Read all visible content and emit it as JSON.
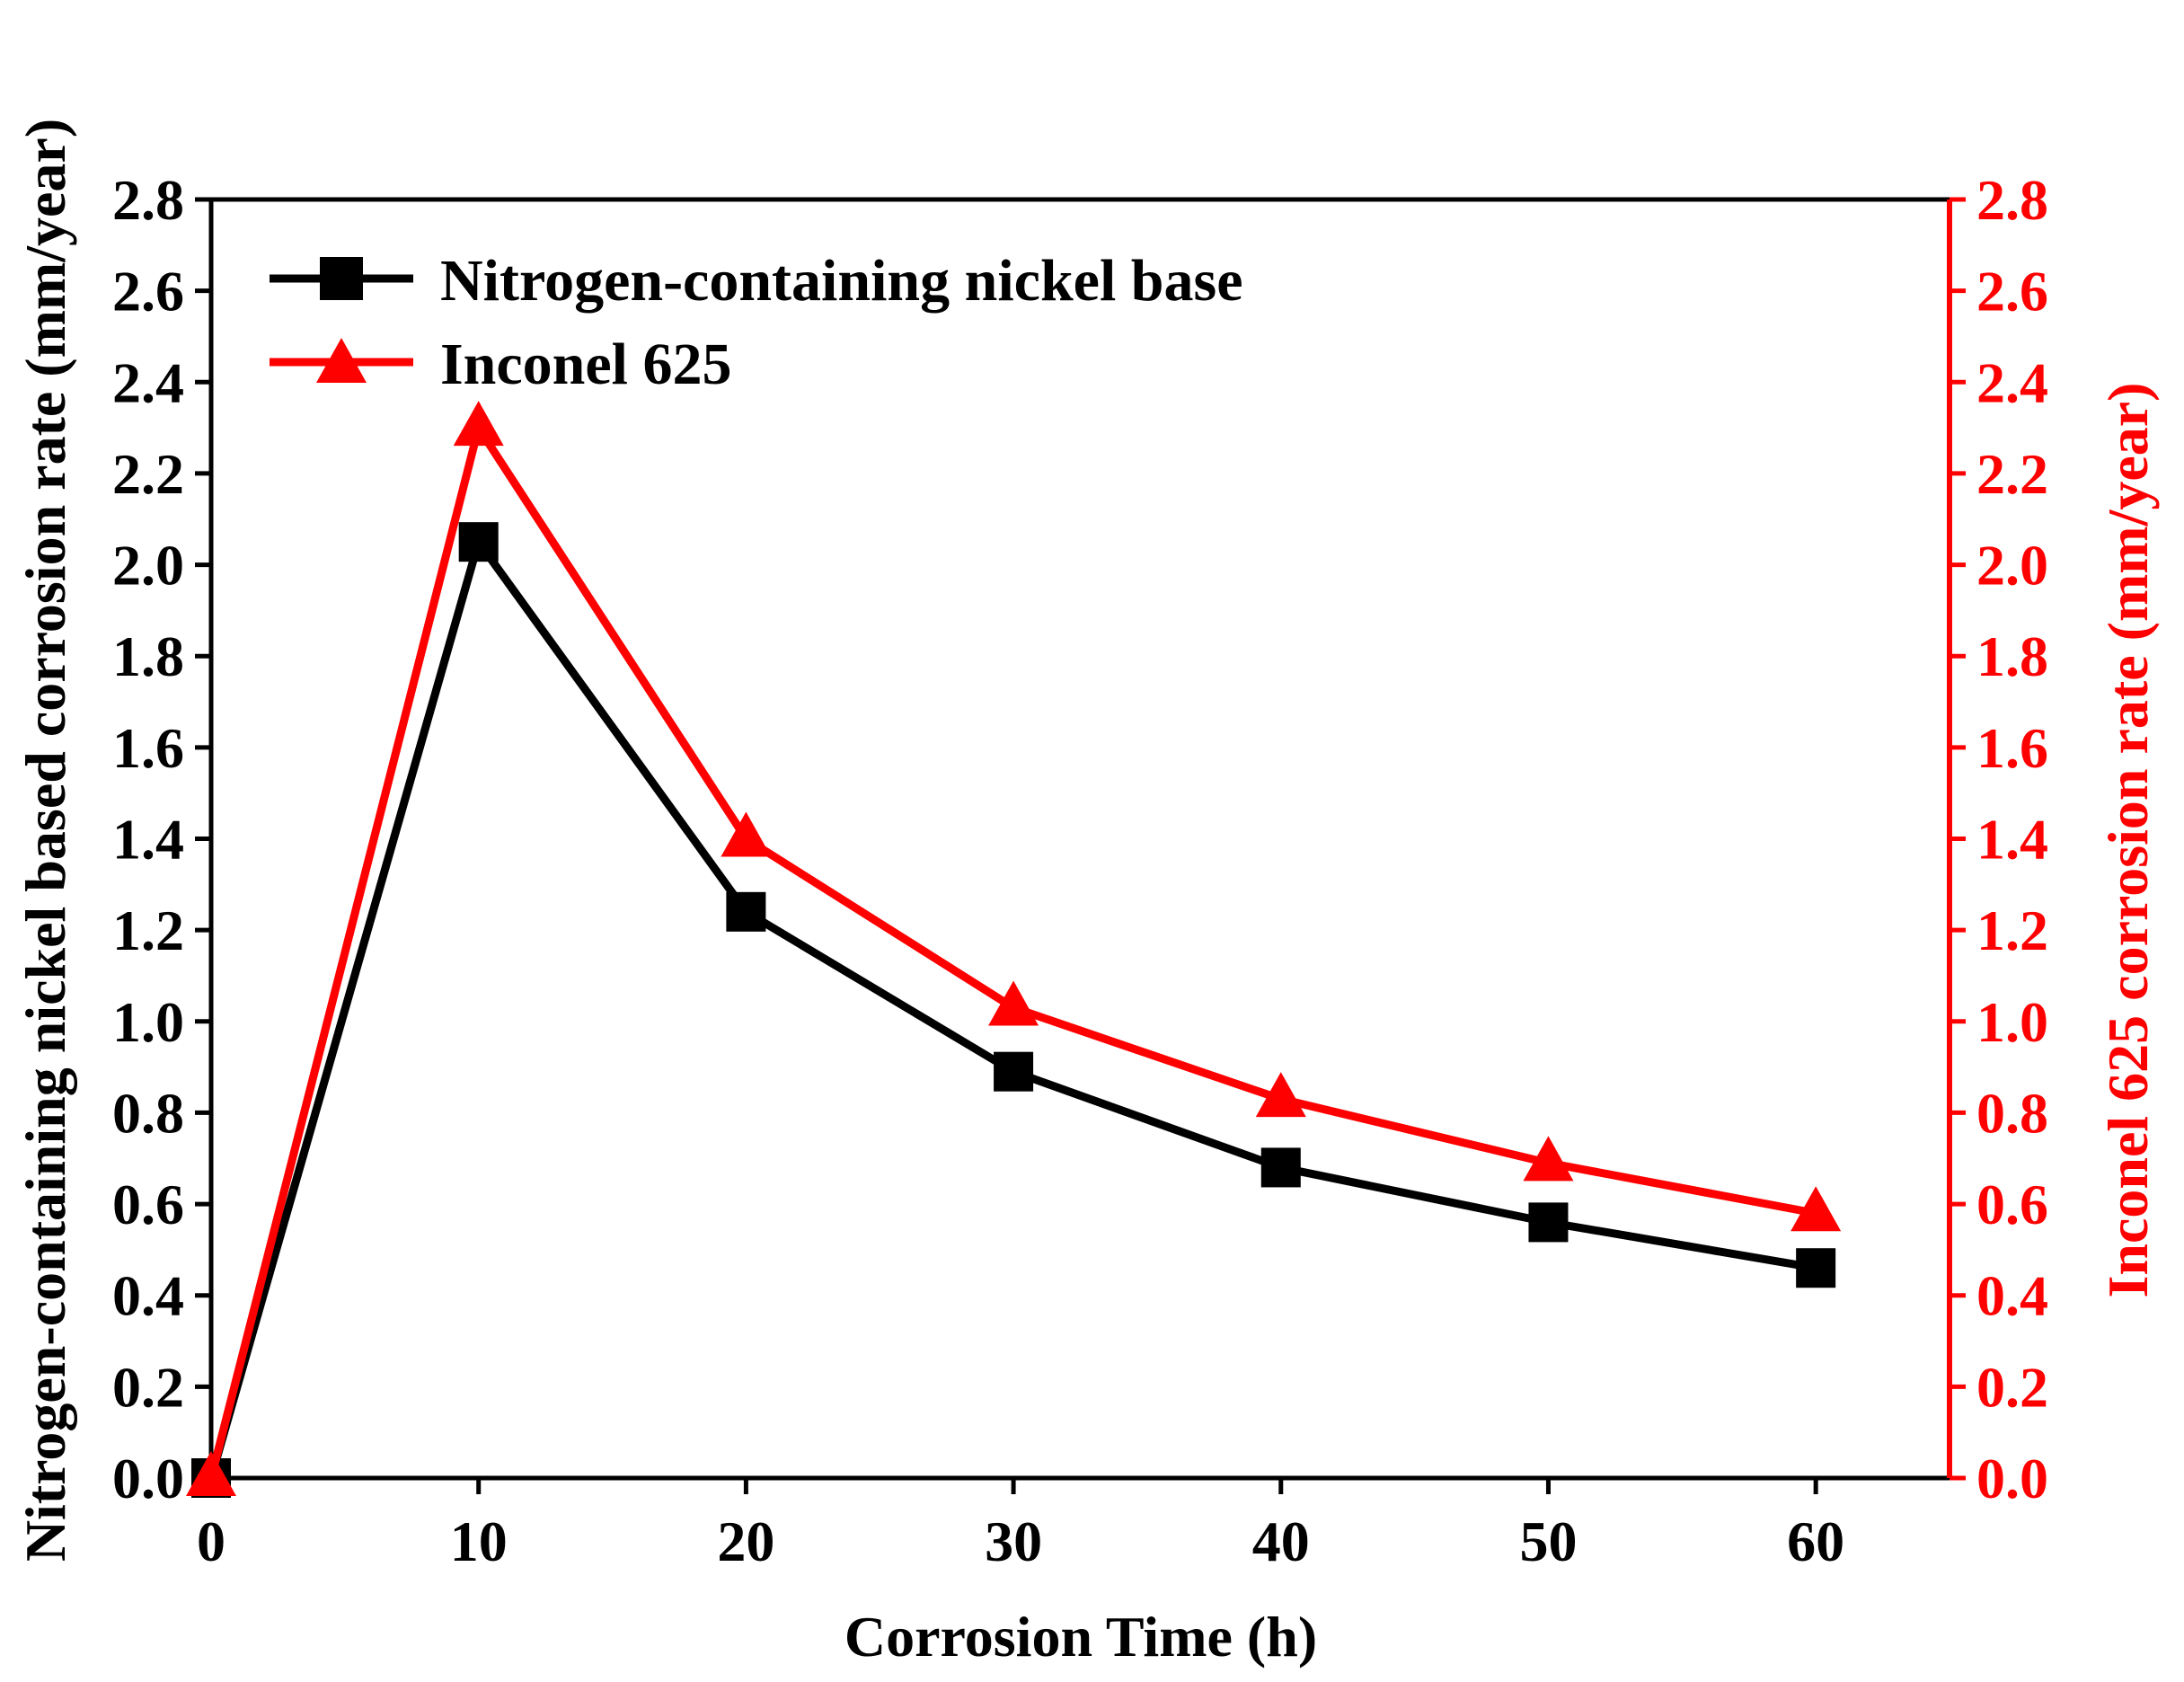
{
  "colors": {
    "left_series": "#000000",
    "right_series": "#ff0000",
    "left_axis": "#000000",
    "right_axis": "#ff0000"
  },
  "chart_data": {
    "type": "line",
    "xlabel": "Corrosion Time (h)",
    "ylabel_left": "Nitrogen-containing nickel based corrosion rate (mm/year)",
    "ylabel_right": "Inconel 625 corrosion rate (mm/year)",
    "xlim": [
      0,
      65
    ],
    "ylim_left": [
      0,
      2.8
    ],
    "ylim_right": [
      0,
      2.8
    ],
    "x_ticks": [
      0,
      10,
      20,
      30,
      40,
      50,
      60
    ],
    "x_tick_labels": [
      "0",
      "10",
      "20",
      "30",
      "40",
      "50",
      "60"
    ],
    "y_ticks": [
      0,
      0.2,
      0.4,
      0.6,
      0.8,
      1.0,
      1.2,
      1.4,
      1.6,
      1.8,
      2.0,
      2.2,
      2.4,
      2.6,
      2.8
    ],
    "y_tick_labels": [
      "0.0",
      "0.2",
      "0.4",
      "0.6",
      "0.8",
      "1.0",
      "1.2",
      "1.4",
      "1.6",
      "1.8",
      "2.0",
      "2.2",
      "2.4",
      "2.6",
      "2.8"
    ],
    "legend_position": "top-left",
    "series": [
      {
        "name": "Nitrogen-containing nickel base",
        "axis": "left",
        "marker": "square",
        "color": "#000000",
        "x": [
          0,
          10,
          20,
          30,
          40,
          50,
          60
        ],
        "y": [
          0.0,
          2.05,
          1.24,
          0.89,
          0.68,
          0.56,
          0.46
        ]
      },
      {
        "name": "Inconel 625",
        "axis": "right",
        "marker": "triangle",
        "color": "#ff0000",
        "x": [
          0,
          10,
          20,
          30,
          40,
          50,
          60
        ],
        "y": [
          0.0,
          2.3,
          1.4,
          1.03,
          0.83,
          0.69,
          0.58
        ]
      }
    ]
  }
}
